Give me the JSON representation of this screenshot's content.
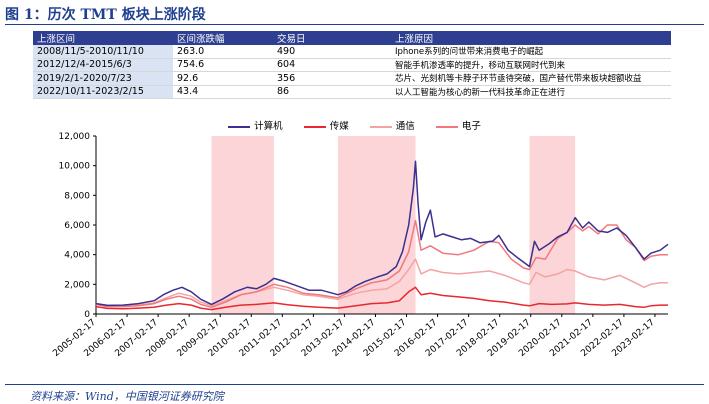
{
  "figure_title": "图 1：历次 TMT 板块上涨阶段",
  "table": {
    "headers": [
      "上涨区间",
      "区间涨跌幅",
      "交易日",
      "上涨原因"
    ],
    "rows": [
      [
        "2008/11/5-2010/11/10",
        "263.0",
        "490",
        "Iphone系列的问世带来消费电子的崛起"
      ],
      [
        "2012/12/4-2015/6/3",
        "754.6",
        "604",
        "智能手机渗透率的提升，移动互联网时代到来"
      ],
      [
        "2019/2/1-2020/7/23",
        "92.6",
        "356",
        "芯片、光刻机等卡脖子环节亟待突破，国产替代带来板块超额收益"
      ],
      [
        "2022/10/11-2023/2/15",
        "43.4",
        "86",
        "以人工智能为核心的新一代科技革命正在进行"
      ]
    ]
  },
  "source": "资料来源：Wind，中国银河证券研究院",
  "colors": {
    "计算机": "#3b2f8f",
    "传媒": "#e8282e",
    "通信": "#f4a3a3",
    "电子": "#f0787e",
    "shade": "#fbd5d7"
  },
  "chart_data": {
    "type": "line",
    "legend_position": "top-center",
    "grid": false,
    "ylim": [
      0,
      12000
    ],
    "y_ticks": [
      "0",
      "2,000",
      "4,000",
      "6,000",
      "8,000",
      "10,000",
      "12,000"
    ],
    "x_range": [
      2005.13,
      2023.55
    ],
    "x_ticks": [
      "2005-02-17",
      "2006-02-17",
      "2007-02-17",
      "2008-02-17",
      "2009-02-17",
      "2010-02-17",
      "2011-02-17",
      "2012-02-17",
      "2013-02-17",
      "2014-02-17",
      "2015-02-17",
      "2016-02-17",
      "2017-02-17",
      "2018-02-17",
      "2019-02-17",
      "2020-02-17",
      "2021-02-17",
      "2022-02-17",
      "2023-02-17"
    ],
    "shaded_periods": [
      [
        2008.85,
        2010.86
      ],
      [
        2012.92,
        2015.42
      ],
      [
        2019.09,
        2020.56
      ]
    ],
    "series": [
      {
        "name": "计算机",
        "points": [
          [
            2005.13,
            700
          ],
          [
            2005.5,
            580
          ],
          [
            2006.0,
            600
          ],
          [
            2006.5,
            700
          ],
          [
            2007.0,
            900
          ],
          [
            2007.3,
            1300
          ],
          [
            2007.6,
            1600
          ],
          [
            2007.9,
            1800
          ],
          [
            2008.2,
            1500
          ],
          [
            2008.5,
            1000
          ],
          [
            2008.85,
            650
          ],
          [
            2009.2,
            1000
          ],
          [
            2009.6,
            1500
          ],
          [
            2010.0,
            1800
          ],
          [
            2010.3,
            1700
          ],
          [
            2010.6,
            2000
          ],
          [
            2010.86,
            2400
          ],
          [
            2011.2,
            2200
          ],
          [
            2011.6,
            1900
          ],
          [
            2012.0,
            1600
          ],
          [
            2012.4,
            1600
          ],
          [
            2012.92,
            1300
          ],
          [
            2013.2,
            1500
          ],
          [
            2013.5,
            1900
          ],
          [
            2013.8,
            2200
          ],
          [
            2014.2,
            2500
          ],
          [
            2014.5,
            2700
          ],
          [
            2014.8,
            3200
          ],
          [
            2015.0,
            4200
          ],
          [
            2015.2,
            6000
          ],
          [
            2015.35,
            8500
          ],
          [
            2015.42,
            10300
          ],
          [
            2015.5,
            7500
          ],
          [
            2015.6,
            5000
          ],
          [
            2015.75,
            6200
          ],
          [
            2015.9,
            7000
          ],
          [
            2016.05,
            5200
          ],
          [
            2016.3,
            5400
          ],
          [
            2016.6,
            5200
          ],
          [
            2016.9,
            5000
          ],
          [
            2017.2,
            5100
          ],
          [
            2017.5,
            4800
          ],
          [
            2017.9,
            4900
          ],
          [
            2018.1,
            5300
          ],
          [
            2018.4,
            4300
          ],
          [
            2018.7,
            3800
          ],
          [
            2019.09,
            3200
          ],
          [
            2019.25,
            4900
          ],
          [
            2019.4,
            4300
          ],
          [
            2019.7,
            4700
          ],
          [
            2020.0,
            5200
          ],
          [
            2020.3,
            5500
          ],
          [
            2020.56,
            6500
          ],
          [
            2020.8,
            5800
          ],
          [
            2021.0,
            6200
          ],
          [
            2021.3,
            5600
          ],
          [
            2021.6,
            5500
          ],
          [
            2021.9,
            5800
          ],
          [
            2022.2,
            5300
          ],
          [
            2022.5,
            4500
          ],
          [
            2022.78,
            3700
          ],
          [
            2023.0,
            4100
          ],
          [
            2023.3,
            4300
          ],
          [
            2023.55,
            4700
          ]
        ]
      },
      {
        "name": "传媒",
        "points": [
          [
            2005.13,
            500
          ],
          [
            2005.5,
            380
          ],
          [
            2006.0,
            350
          ],
          [
            2006.5,
            400
          ],
          [
            2007.0,
            450
          ],
          [
            2007.4,
            600
          ],
          [
            2007.8,
            700
          ],
          [
            2008.2,
            600
          ],
          [
            2008.5,
            400
          ],
          [
            2008.85,
            300
          ],
          [
            2009.3,
            450
          ],
          [
            2009.8,
            600
          ],
          [
            2010.3,
            650
          ],
          [
            2010.86,
            750
          ],
          [
            2011.3,
            620
          ],
          [
            2011.8,
            520
          ],
          [
            2012.3,
            450
          ],
          [
            2012.92,
            400
          ],
          [
            2013.5,
            560
          ],
          [
            2014.0,
            700
          ],
          [
            2014.5,
            750
          ],
          [
            2014.9,
            900
          ],
          [
            2015.2,
            1500
          ],
          [
            2015.42,
            1800
          ],
          [
            2015.6,
            1300
          ],
          [
            2015.9,
            1400
          ],
          [
            2016.3,
            1250
          ],
          [
            2016.8,
            1150
          ],
          [
            2017.3,
            1050
          ],
          [
            2017.8,
            900
          ],
          [
            2018.3,
            800
          ],
          [
            2018.9,
            600
          ],
          [
            2019.09,
            550
          ],
          [
            2019.4,
            700
          ],
          [
            2019.8,
            650
          ],
          [
            2020.3,
            680
          ],
          [
            2020.56,
            750
          ],
          [
            2021.0,
            650
          ],
          [
            2021.5,
            600
          ],
          [
            2022.0,
            650
          ],
          [
            2022.5,
            500
          ],
          [
            2022.78,
            450
          ],
          [
            2023.0,
            550
          ],
          [
            2023.3,
            600
          ],
          [
            2023.55,
            600
          ]
        ]
      },
      {
        "name": "通信",
        "points": [
          [
            2005.13,
            700
          ],
          [
            2005.5,
            580
          ],
          [
            2006.0,
            550
          ],
          [
            2006.5,
            600
          ],
          [
            2007.0,
            750
          ],
          [
            2007.4,
            1100
          ],
          [
            2007.8,
            1400
          ],
          [
            2008.2,
            1200
          ],
          [
            2008.5,
            800
          ],
          [
            2008.85,
            550
          ],
          [
            2009.3,
            900
          ],
          [
            2009.8,
            1300
          ],
          [
            2010.3,
            1500
          ],
          [
            2010.86,
            1800
          ],
          [
            2011.3,
            1600
          ],
          [
            2011.8,
            1300
          ],
          [
            2012.3,
            1200
          ],
          [
            2012.92,
            1000
          ],
          [
            2013.5,
            1400
          ],
          [
            2014.0,
            1600
          ],
          [
            2014.5,
            1700
          ],
          [
            2014.9,
            2200
          ],
          [
            2015.2,
            3000
          ],
          [
            2015.42,
            3700
          ],
          [
            2015.6,
            2700
          ],
          [
            2015.9,
            3000
          ],
          [
            2016.3,
            2800
          ],
          [
            2016.8,
            2700
          ],
          [
            2017.3,
            2800
          ],
          [
            2017.8,
            2900
          ],
          [
            2018.3,
            2600
          ],
          [
            2018.9,
            2100
          ],
          [
            2019.09,
            2000
          ],
          [
            2019.3,
            2800
          ],
          [
            2019.6,
            2500
          ],
          [
            2020.0,
            2700
          ],
          [
            2020.3,
            3000
          ],
          [
            2020.56,
            2900
          ],
          [
            2021.0,
            2500
          ],
          [
            2021.5,
            2300
          ],
          [
            2022.0,
            2600
          ],
          [
            2022.5,
            2100
          ],
          [
            2022.78,
            1800
          ],
          [
            2023.0,
            2000
          ],
          [
            2023.3,
            2100
          ],
          [
            2023.55,
            2100
          ]
        ]
      },
      {
        "name": "电子",
        "points": [
          [
            2005.13,
            650
          ],
          [
            2005.5,
            500
          ],
          [
            2006.0,
            500
          ],
          [
            2006.5,
            550
          ],
          [
            2007.0,
            700
          ],
          [
            2007.4,
            1000
          ],
          [
            2007.8,
            1200
          ],
          [
            2008.2,
            1000
          ],
          [
            2008.5,
            650
          ],
          [
            2008.85,
            450
          ],
          [
            2009.3,
            800
          ],
          [
            2009.8,
            1300
          ],
          [
            2010.3,
            1500
          ],
          [
            2010.86,
            2000
          ],
          [
            2011.3,
            1800
          ],
          [
            2011.8,
            1400
          ],
          [
            2012.3,
            1300
          ],
          [
            2012.92,
            1100
          ],
          [
            2013.5,
            1700
          ],
          [
            2014.0,
            2100
          ],
          [
            2014.5,
            2300
          ],
          [
            2014.9,
            2900
          ],
          [
            2015.2,
            4200
          ],
          [
            2015.42,
            6300
          ],
          [
            2015.6,
            4300
          ],
          [
            2015.9,
            4600
          ],
          [
            2016.3,
            4100
          ],
          [
            2016.8,
            4000
          ],
          [
            2017.3,
            4300
          ],
          [
            2017.8,
            4900
          ],
          [
            2018.1,
            4800
          ],
          [
            2018.5,
            3700
          ],
          [
            2018.9,
            3100
          ],
          [
            2019.09,
            3000
          ],
          [
            2019.3,
            3800
          ],
          [
            2019.6,
            3700
          ],
          [
            2020.0,
            5100
          ],
          [
            2020.3,
            5500
          ],
          [
            2020.56,
            6000
          ],
          [
            2020.8,
            5600
          ],
          [
            2021.0,
            5900
          ],
          [
            2021.3,
            5400
          ],
          [
            2021.6,
            6000
          ],
          [
            2021.9,
            6000
          ],
          [
            2022.2,
            5000
          ],
          [
            2022.5,
            4500
          ],
          [
            2022.78,
            3600
          ],
          [
            2023.0,
            3900
          ],
          [
            2023.3,
            4000
          ],
          [
            2023.55,
            4000
          ]
        ]
      }
    ]
  }
}
